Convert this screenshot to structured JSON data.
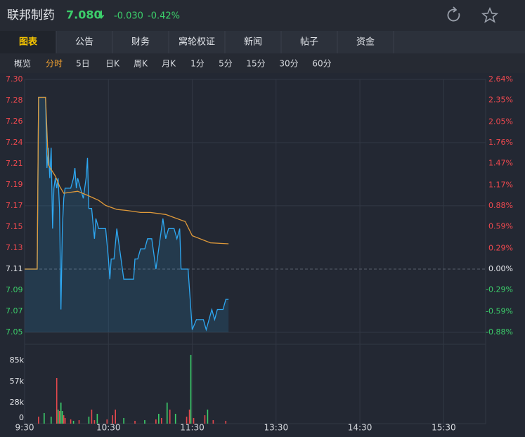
{
  "header": {
    "title": "联邦制药",
    "price": "7.080",
    "change": "-0.030",
    "change_pct": "-0.42%"
  },
  "tabs": [
    "图表",
    "公告",
    "财务",
    "窝轮权证",
    "新闻",
    "帖子",
    "资金"
  ],
  "subtabs": [
    "概览",
    "分时",
    "5日",
    "日K",
    "周K",
    "月K",
    "1分",
    "5分",
    "15分",
    "30分",
    "60分"
  ],
  "chart_data": [
    {
      "type": "line",
      "xlim": [
        0,
        330
      ],
      "ylim": [
        7.0474,
        7.2977
      ],
      "yticks": [
        {
          "value": 7.2977,
          "label": "7.30"
        },
        {
          "value": 7.2768,
          "label": "7.28"
        },
        {
          "value": 7.256,
          "label": "7.26"
        },
        {
          "value": 7.2351,
          "label": "7.24"
        },
        {
          "value": 7.2143,
          "label": "7.21"
        },
        {
          "value": 7.1934,
          "label": "7.19"
        },
        {
          "value": 7.1726,
          "label": "7.17"
        },
        {
          "value": 7.1517,
          "label": "7.15"
        },
        {
          "value": 7.1309,
          "label": "7.13"
        },
        {
          "value": 7.11,
          "label": "7.11"
        },
        {
          "value": 7.0891,
          "label": "7.09"
        },
        {
          "value": 7.0683,
          "label": "7.07"
        },
        {
          "value": 7.0474,
          "label": "7.05"
        }
      ],
      "y2lim": [
        -0.88,
        2.64
      ],
      "y2ticks": [
        {
          "value": 2.64,
          "label": "2.64%"
        },
        {
          "value": 2.35,
          "label": "2.35%"
        },
        {
          "value": 2.05,
          "label": "2.05%"
        },
        {
          "value": 1.76,
          "label": "1.76%"
        },
        {
          "value": 1.47,
          "label": "1.47%"
        },
        {
          "value": 1.17,
          "label": "1.17%"
        },
        {
          "value": 0.88,
          "label": "0.88%"
        },
        {
          "value": 0.59,
          "label": "0.59%"
        },
        {
          "value": 0.29,
          "label": "0.29%"
        },
        {
          "value": 0,
          "label": "0.00%"
        },
        {
          "value": -0.29,
          "label": "-0.29%"
        },
        {
          "value": -0.59,
          "label": "-0.59%"
        },
        {
          "value": -0.88,
          "label": "-0.88%"
        }
      ],
      "series": [
        {
          "color": "#2ea8f2",
          "x": [
            0,
            9,
            10,
            15,
            16,
            17,
            18,
            19,
            20,
            21,
            22,
            23,
            24,
            25,
            26,
            27,
            28,
            29,
            33,
            35,
            36,
            37,
            38,
            40,
            42,
            44,
            45,
            46,
            48,
            50,
            51,
            53,
            57,
            58,
            60,
            61,
            62,
            64,
            66,
            68,
            71,
            78,
            79,
            81,
            83,
            86,
            88,
            91,
            93,
            94,
            96,
            98,
            99,
            101,
            103,
            107,
            109,
            111,
            112,
            117,
            119,
            120,
            123,
            128,
            130,
            132,
            134,
            136,
            138,
            142,
            144,
            146
          ],
          "values": [
            7.11,
            7.11,
            7.28,
            7.28,
            7.21,
            7.23,
            7.2,
            7.23,
            7.15,
            7.19,
            7.2,
            7.19,
            7.2,
            7.17,
            7.07,
            7.15,
            7.18,
            7.19,
            7.19,
            7.2,
            7.21,
            7.19,
            7.2,
            7.19,
            7.18,
            7.2,
            7.22,
            7.17,
            7.17,
            7.14,
            7.16,
            7.15,
            7.15,
            7.15,
            7.12,
            7.1,
            7.12,
            7.12,
            7.15,
            7.13,
            7.1,
            7.1,
            7.12,
            7.12,
            7.13,
            7.13,
            7.14,
            7.14,
            7.12,
            7.11,
            7.13,
            7.15,
            7.16,
            7.14,
            7.15,
            7.15,
            7.14,
            7.15,
            7.11,
            7.11,
            7.07,
            7.05,
            7.06,
            7.06,
            7.05,
            7.06,
            7.07,
            7.06,
            7.07,
            7.07,
            7.08,
            7.08
          ]
        },
        {
          "color": "#e09a3a",
          "x": [
            0,
            9,
            10,
            15,
            17,
            22,
            25,
            28,
            38,
            45,
            53,
            58,
            66,
            73,
            83,
            90,
            101,
            107,
            115,
            120,
            133,
            146
          ],
          "values": [
            7.11,
            7.11,
            7.28,
            7.28,
            7.213,
            7.202,
            7.192,
            7.185,
            7.187,
            7.183,
            7.178,
            7.173,
            7.169,
            7.168,
            7.166,
            7.166,
            7.164,
            7.161,
            7.157,
            7.143,
            7.136,
            7.135
          ]
        }
      ]
    },
    {
      "type": "bar",
      "xlim": [
        0,
        330
      ],
      "xticks": [
        {
          "value": 0,
          "label": "9:30"
        },
        {
          "value": 60,
          "label": "10:30"
        },
        {
          "value": 120,
          "label": "11:30"
        },
        {
          "value": 180,
          "label": "13:30"
        },
        {
          "value": 240,
          "label": "14:30"
        },
        {
          "value": 300,
          "label": "15:30"
        }
      ],
      "ylim": [
        0,
        97278
      ],
      "yticks": [
        0,
        {
          "value": 28333,
          "label": "28k"
        },
        {
          "value": 56667,
          "label": "57k"
        },
        {
          "value": 85000,
          "label": "85k"
        }
      ],
      "x": [
        10,
        14,
        19,
        23,
        24,
        25,
        26,
        27,
        28,
        29,
        33,
        35,
        39,
        46,
        48,
        50,
        52,
        59,
        63,
        65,
        71,
        79,
        86,
        94,
        96,
        98,
        102,
        104,
        108,
        116,
        118,
        119,
        121,
        129,
        131,
        135,
        144
      ],
      "values": [
        9400,
        14200,
        9400,
        61400,
        18900,
        17000,
        28300,
        17000,
        11300,
        7600,
        5700,
        3800,
        4700,
        9400,
        18900,
        4700,
        13200,
        5700,
        11300,
        18900,
        7600,
        3800,
        4700,
        5700,
        13200,
        7600,
        28300,
        18900,
        13200,
        9400,
        18900,
        92500,
        7600,
        11300,
        18900,
        4700,
        3800
      ],
      "colors": [
        "#e5484d",
        "#3ccf6b",
        "#3ccf6b",
        "#e5484d",
        "#3ccf6b",
        "#e5484d",
        "#3ccf6b",
        "#3ccf6b",
        "#e5484d",
        "#e5484d",
        "#e5484d",
        "#3ccf6b",
        "#e5484d",
        "#3ccf6b",
        "#e5484d",
        "#e5484d",
        "#3ccf6b",
        "#e5484d",
        "#e5484d",
        "#e5484d",
        "#3ccf6b",
        "#e5484d",
        "#3ccf6b",
        "#e5484d",
        "#3ccf6b",
        "#e5484d",
        "#3ccf6b",
        "#e5484d",
        "#3ccf6b",
        "#e5484d",
        "#e5484d",
        "#3ccf6b",
        "#e5484d",
        "#e5484d",
        "#3ccf6b",
        "#e5484d",
        "#e5484d"
      ]
    }
  ]
}
